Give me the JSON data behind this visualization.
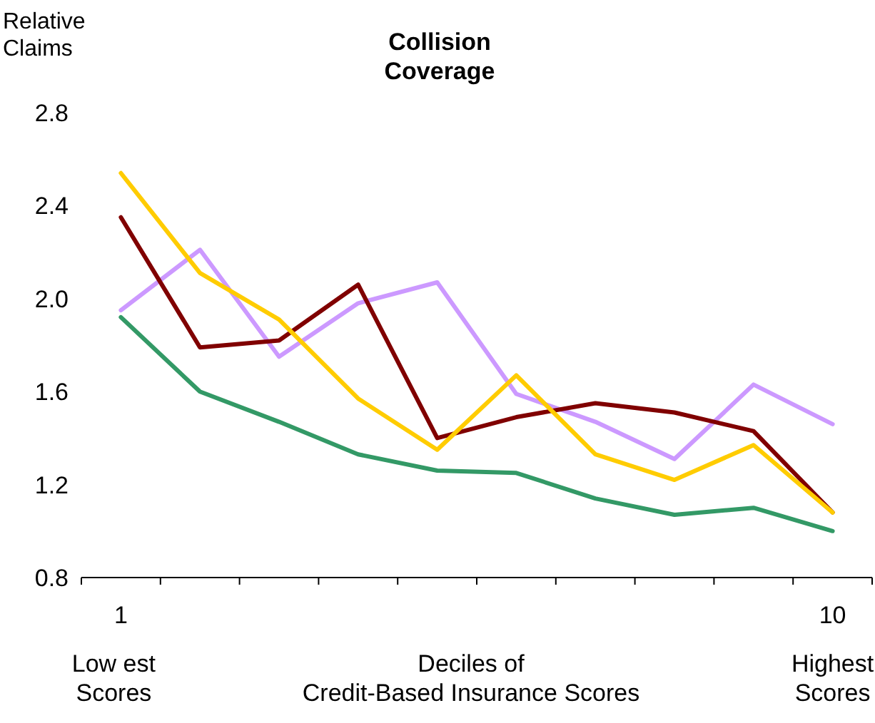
{
  "chart_data": {
    "type": "line",
    "title": "Collision\nCoverage",
    "ylabel": "Relative\nClaims",
    "xlabel": "Deciles of\nCredit-Based Insurance Scores",
    "annotations": [
      "Low est\nScores",
      "Highest\nScores"
    ],
    "categories": [
      "1",
      null,
      null,
      null,
      null,
      null,
      null,
      null,
      null,
      "10"
    ],
    "ylim": [
      0.8,
      2.8
    ],
    "yticks": [
      {
        "value": 0.8,
        "label": "0.8"
      },
      {
        "value": 1.2,
        "label": "1.2"
      },
      {
        "value": 1.6,
        "label": "1.6"
      },
      {
        "value": 2,
        "label": "2.0"
      },
      {
        "value": 2.4,
        "label": "2.4"
      },
      {
        "value": 2.8,
        "label": "2.8"
      }
    ],
    "series": [
      {
        "color": "#cc99ff",
        "values": [
          1.95,
          2.21,
          1.75,
          1.98,
          2.07,
          1.59,
          1.47,
          1.31,
          1.63,
          1.46
        ]
      },
      {
        "color": "#339966",
        "values": [
          1.92,
          1.6,
          1.47,
          1.33,
          1.26,
          1.25,
          1.14,
          1.07,
          1.1,
          1.0
        ]
      },
      {
        "color": "#800000",
        "values": [
          2.35,
          1.79,
          1.82,
          2.06,
          1.4,
          1.49,
          1.55,
          1.51,
          1.43,
          1.08
        ]
      },
      {
        "color": "#ffcc00",
        "values": [
          2.54,
          2.11,
          1.91,
          1.57,
          1.35,
          1.67,
          1.33,
          1.22,
          1.37,
          1.08
        ]
      }
    ],
    "grid": false,
    "marker": "none",
    "line_style": "solid"
  }
}
